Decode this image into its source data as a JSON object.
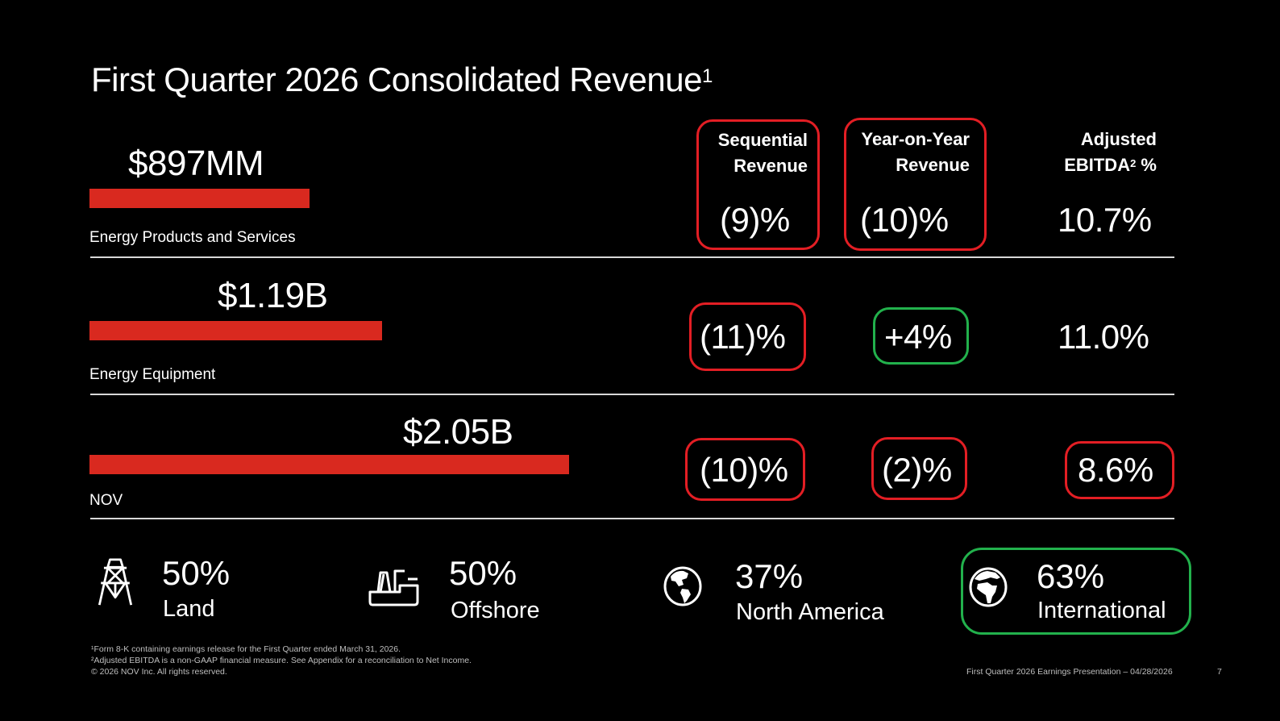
{
  "slide": {
    "title": "First Quarter 2026 Consolidated Revenue",
    "title_footnote": "1",
    "page_number": "7",
    "footer_right": "First Quarter 2026 Earnings Presentation – 04/28/2026"
  },
  "columns": {
    "sequential": {
      "line1": "Sequential",
      "line2": "Revenue"
    },
    "yoy": {
      "line1": "Year-on-Year",
      "line2": "Revenue"
    },
    "ebitda": {
      "line1": "Adjusted",
      "line2": "EBITDA",
      "footnote": "2",
      "suffix": " %"
    }
  },
  "segments": [
    {
      "name": "Energy Products and Services",
      "revenue": "$897MM",
      "revenue_value_billion": 0.897,
      "sequential": "(9)%",
      "yoy": "(10)%",
      "ebitda": "10.7%",
      "sequential_highlight": "red",
      "yoy_highlight": "red",
      "ebitda_highlight": "none"
    },
    {
      "name": "Energy Equipment",
      "revenue": "$1.19B",
      "revenue_value_billion": 1.19,
      "sequential": "(11)%",
      "yoy": "+4%",
      "ebitda": "11.0%",
      "sequential_highlight": "red",
      "yoy_highlight": "green",
      "ebitda_highlight": "none"
    },
    {
      "name": "NOV",
      "revenue": "$2.05B",
      "revenue_value_billion": 2.05,
      "sequential": "(10)%",
      "yoy": "(2)%",
      "ebitda": "8.6%",
      "sequential_highlight": "red",
      "yoy_highlight": "red",
      "ebitda_highlight": "red"
    }
  ],
  "mix": [
    {
      "icon": "oil-derrick-icon",
      "percent": "50%",
      "label": "Land"
    },
    {
      "icon": "offshore-vessel-icon",
      "percent": "50%",
      "label": "Offshore"
    },
    {
      "icon": "globe-americas-icon",
      "percent": "37%",
      "label": "North America"
    },
    {
      "icon": "globe-africa-icon",
      "percent": "63%",
      "label": "International",
      "highlight": "green"
    }
  ],
  "footnotes": [
    "¹Form 8-K containing earnings release for the First Quarter ended March 31, 2026.",
    "²Adjusted EBITDA is a non-GAAP financial measure. See Appendix for a reconciliation to Net Income.",
    "© 2026 NOV Inc. All rights reserved."
  ],
  "colors": {
    "bar": "#d9291f",
    "negative_box": "#e31e24",
    "positive_box": "#22b14c",
    "background": "#000000"
  }
}
